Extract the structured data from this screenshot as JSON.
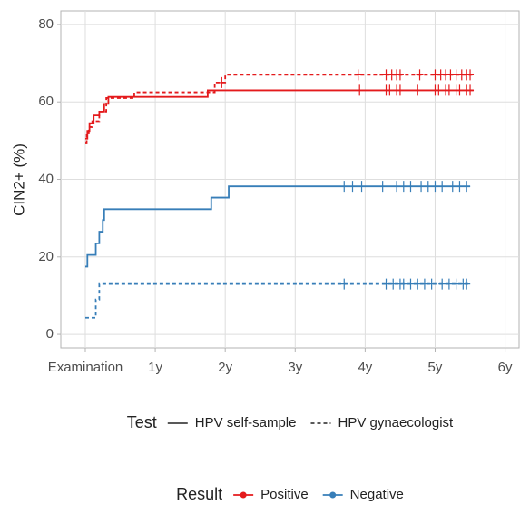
{
  "chart_data": {
    "type": "step",
    "y_label": "CIN2+ (%)",
    "xlim": [
      -0.35,
      6.2
    ],
    "ylim": [
      -3.5,
      83.5
    ],
    "xticks": [
      {
        "value": 0,
        "label": "Examination"
      },
      {
        "value": 1,
        "label": "1y"
      },
      {
        "value": 2,
        "label": "2y"
      },
      {
        "value": 3,
        "label": "3y"
      },
      {
        "value": 4,
        "label": "4y"
      },
      {
        "value": 5,
        "label": "5y"
      },
      {
        "value": 6,
        "label": "6y"
      }
    ],
    "yticks": [
      0,
      20,
      40,
      60,
      80
    ],
    "grid": true,
    "series": [
      {
        "color": "#e41a1c",
        "dashed": false,
        "x": [
          0,
          0.03,
          0.06,
          0.12,
          0.2,
          0.27,
          0.33,
          1.75,
          5.55
        ],
        "values": [
          50.5,
          52.5,
          54.5,
          56.5,
          57.5,
          59.5,
          61.3,
          63,
          63
        ],
        "censored": [
          3.92,
          4.3,
          4.35,
          4.45,
          4.5,
          4.75,
          5.0,
          5.05,
          5.15,
          5.2,
          5.3,
          5.35,
          5.45,
          5.5
        ]
      },
      {
        "color": "#e41a1c",
        "dashed": true,
        "x": [
          0,
          0.02,
          0.05,
          0.1,
          0.2,
          0.3,
          0.7,
          1.85,
          2.0,
          5.55
        ],
        "values": [
          49.5,
          51.5,
          53.5,
          55,
          57.5,
          61,
          62.5,
          65,
          67,
          67
        ],
        "censored": [
          1.95,
          3.9,
          4.3,
          4.38,
          4.45,
          4.5,
          4.78,
          5.0,
          5.08,
          5.15,
          5.22,
          5.3,
          5.38,
          5.45,
          5.5
        ]
      },
      {
        "color": "#377eb8",
        "dashed": false,
        "x": [
          0,
          0.03,
          0.15,
          0.2,
          0.25,
          0.27,
          1.8,
          2.05,
          5.5
        ],
        "values": [
          17.5,
          20.5,
          23.5,
          26.5,
          29.5,
          32.3,
          35.3,
          38.2,
          38.2
        ],
        "censored": [
          3.7,
          3.82,
          3.95,
          4.25,
          4.45,
          4.55,
          4.65,
          4.8,
          4.9,
          5.0,
          5.1,
          5.25,
          5.35,
          5.45
        ]
      },
      {
        "color": "#377eb8",
        "dashed": true,
        "x": [
          0,
          0.15,
          0.2,
          5.5
        ],
        "values": [
          4.3,
          9,
          13,
          13
        ],
        "censored": [
          3.7,
          4.3,
          4.4,
          4.5,
          4.55,
          4.65,
          4.75,
          4.85,
          4.95,
          5.1,
          5.2,
          5.3,
          5.4,
          5.45
        ]
      }
    ],
    "legends": [
      {
        "title": "Test",
        "entries": [
          {
            "label": "HPV self-sample",
            "dashed": false
          },
          {
            "label": "HPV gynaecologist",
            "dashed": true
          }
        ]
      },
      {
        "title": "Result",
        "entries": [
          {
            "label": "Positive",
            "color": "#e41a1c"
          },
          {
            "label": "Negative",
            "color": "#377eb8"
          }
        ]
      }
    ]
  }
}
